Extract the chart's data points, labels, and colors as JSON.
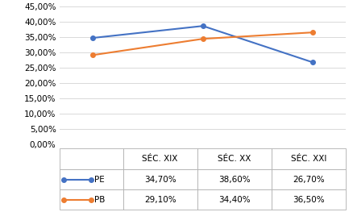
{
  "categories": [
    "SÉC. XIX",
    "SÉC. XX",
    "SÉC. XXI"
  ],
  "pe_values": [
    0.347,
    0.386,
    0.267
  ],
  "pb_values": [
    0.291,
    0.344,
    0.365
  ],
  "pe_color": "#4472C4",
  "pb_color": "#ED7D31",
  "pe_label": "PE",
  "pb_label": "PB",
  "pe_table": [
    "34,70%",
    "38,60%",
    "26,70%"
  ],
  "pb_table": [
    "29,10%",
    "34,40%",
    "36,50%"
  ],
  "ylim": [
    0.0,
    0.45
  ],
  "yticks": [
    0.0,
    0.05,
    0.1,
    0.15,
    0.2,
    0.25,
    0.3,
    0.35,
    0.4,
    0.45
  ],
  "background_color": "#ffffff",
  "grid_color": "#d9d9d9",
  "table_border_color": "#b0b0b0"
}
